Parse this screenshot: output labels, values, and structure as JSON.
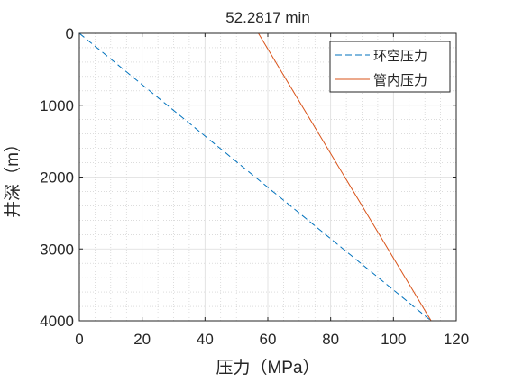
{
  "chart_data": {
    "type": "line",
    "title": "52.2817 min",
    "xlabel": "压力（MPa）",
    "ylabel": "井深（m）",
    "xlim": [
      0,
      120
    ],
    "ylim": [
      4000,
      0
    ],
    "y_reversed": true,
    "xticks": [
      0,
      20,
      40,
      60,
      80,
      100,
      120
    ],
    "yticks": [
      0,
      1000,
      2000,
      3000,
      4000
    ],
    "xtick_labels": [
      "0",
      "20",
      "40",
      "60",
      "80",
      "100",
      "120"
    ],
    "ytick_labels": [
      "0",
      "1000",
      "2000",
      "3000",
      "4000"
    ],
    "grid": "major and minor (dotted)",
    "legend_position": "top-right",
    "series": [
      {
        "name": "环空压力",
        "color": "#0072BD",
        "line_style": "dashed",
        "x": [
          0,
          112
        ],
        "y": [
          0,
          4000
        ]
      },
      {
        "name": "管内压力",
        "color": "#D95319",
        "line_style": "solid",
        "x": [
          57,
          112
        ],
        "y": [
          0,
          4000
        ]
      }
    ]
  }
}
